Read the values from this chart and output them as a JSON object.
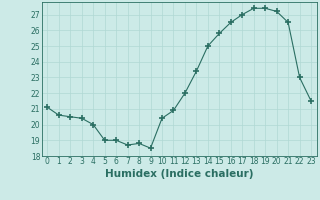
{
  "x": [
    0,
    1,
    2,
    3,
    4,
    5,
    6,
    7,
    8,
    9,
    10,
    11,
    12,
    13,
    14,
    15,
    16,
    17,
    18,
    19,
    20,
    21,
    22,
    23
  ],
  "y": [
    21.1,
    20.6,
    20.5,
    20.4,
    20.0,
    19.0,
    19.0,
    18.7,
    18.8,
    18.5,
    20.4,
    20.9,
    22.0,
    23.4,
    25.0,
    25.8,
    26.5,
    27.0,
    27.4,
    27.4,
    27.2,
    26.5,
    23.0,
    21.5
  ],
  "line_color": "#2a6e62",
  "marker": "+",
  "marker_size": 4,
  "bg_color": "#cceae7",
  "grid_color": "#b0d8d4",
  "xlabel": "Humidex (Indice chaleur)",
  "ylim": [
    18,
    27.8
  ],
  "xlim": [
    -0.5,
    23.5
  ],
  "yticks": [
    18,
    19,
    20,
    21,
    22,
    23,
    24,
    25,
    26,
    27
  ],
  "xticks": [
    0,
    1,
    2,
    3,
    4,
    5,
    6,
    7,
    8,
    9,
    10,
    11,
    12,
    13,
    14,
    15,
    16,
    17,
    18,
    19,
    20,
    21,
    22,
    23
  ],
  "tick_fontsize": 5.5,
  "xlabel_fontsize": 7.5,
  "tick_color": "#2a6e62",
  "label_color": "#2a6e62",
  "spine_color": "#2a6e62"
}
